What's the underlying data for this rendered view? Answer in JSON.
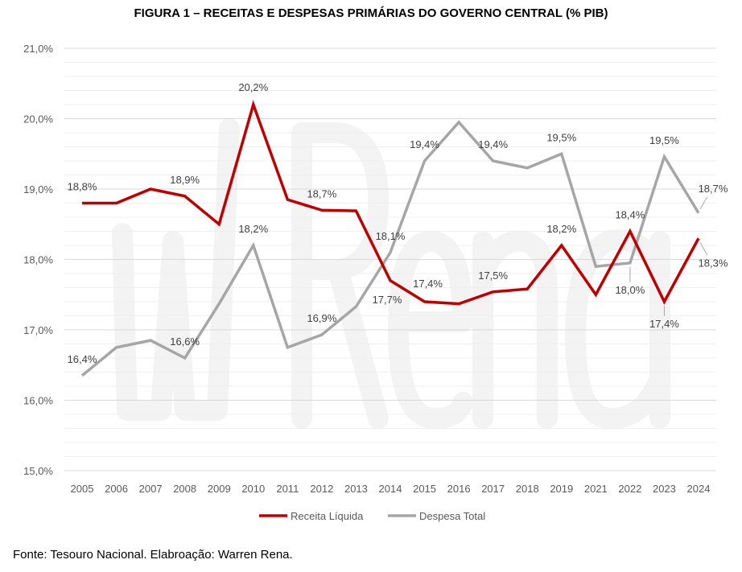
{
  "chart_data": {
    "type": "line",
    "title": "FIGURA 1 – RECEITAS E DESPESAS PRIMÁRIAS DO GOVERNO CENTRAL (% PIB)",
    "xlabel": "",
    "ylabel": "",
    "categories": [
      "2005",
      "2006",
      "2007",
      "2008",
      "2009",
      "2010",
      "2011",
      "2012",
      "2013",
      "2014",
      "2015",
      "2016",
      "2017",
      "2018",
      "2019",
      "2021",
      "2022",
      "2023",
      "2024"
    ],
    "ylim": [
      15.0,
      21.0
    ],
    "yticks": [
      "15,0%",
      "16,0%",
      "17,0%",
      "18,0%",
      "19,0%",
      "20,0%",
      "21,0%"
    ],
    "grid": true,
    "legend": "bottom",
    "series": [
      {
        "name": "Receita Líquida",
        "color": "#c00000",
        "values": [
          18.8,
          18.8,
          19.0,
          18.9,
          18.5,
          20.2,
          18.85,
          18.7,
          18.69,
          17.7,
          17.4,
          17.37,
          17.54,
          17.58,
          18.2,
          17.5,
          18.4,
          17.4,
          18.3
        ],
        "labels": [
          "18,8%",
          null,
          null,
          "18,9%",
          null,
          "20,2%",
          null,
          "18,7%",
          null,
          "17,7%",
          "17,4%",
          null,
          "17,5%",
          null,
          "18,2%",
          null,
          "18,4%",
          "17,4%",
          "18,3%"
        ]
      },
      {
        "name": "Despesa Total",
        "color": "#a6a6a6",
        "values": [
          16.35,
          16.75,
          16.85,
          16.6,
          17.37,
          18.2,
          16.75,
          16.93,
          17.33,
          18.1,
          19.4,
          19.95,
          19.4,
          19.3,
          19.5,
          17.9,
          17.95,
          19.46,
          18.66
        ],
        "labels": [
          "16,4%",
          null,
          null,
          "16,6%",
          null,
          "18,2%",
          null,
          "16,9%",
          null,
          "18,1%",
          "19,4%",
          null,
          "19,4%",
          null,
          "19,5%",
          null,
          "18,0%",
          "19,5%",
          "18,7%"
        ]
      }
    ],
    "source": "Fonte: Tesouro Nacional. Elabroação: Warren Rena.",
    "watermark": "wRena"
  }
}
